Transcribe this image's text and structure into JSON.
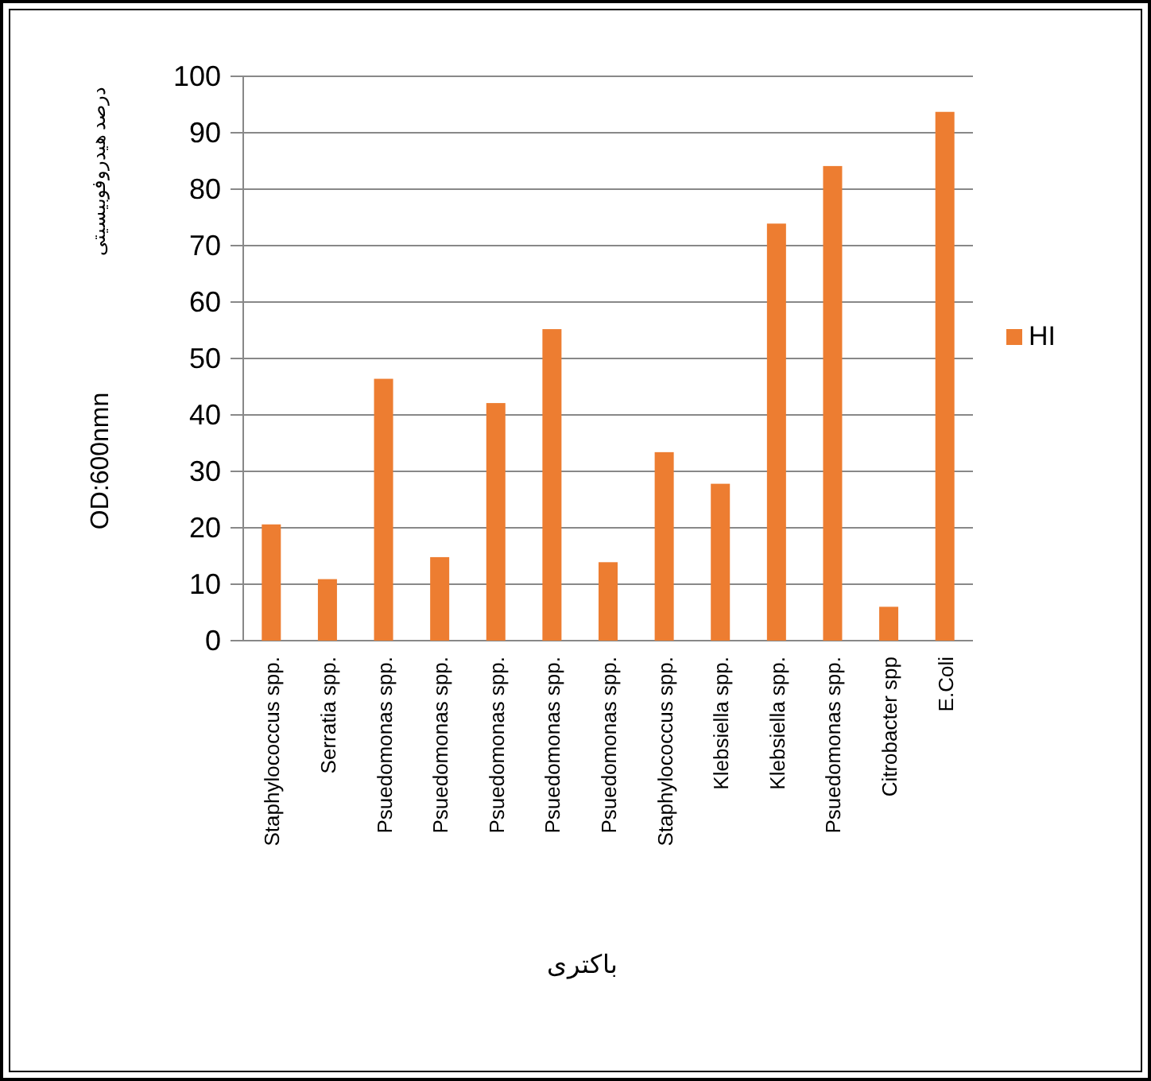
{
  "chart_data": {
    "type": "bar",
    "categories": [
      "Staphylococcus spp.",
      "Serratia spp.",
      "Psuedomonas spp.",
      "Psuedomonas spp.",
      "Psuedomonas spp.",
      "Psuedomonas spp.",
      "Psuedomonas spp.",
      "Staphylococcus spp.",
      "Klebsiella spp.",
      "Klebsiella spp.",
      "Psuedomonas spp.",
      "Citrobacter spp",
      "E.Coli"
    ],
    "series": [
      {
        "name": "HI",
        "color": "#ed7d31",
        "values": [
          20.6,
          10.9,
          46.4,
          14.8,
          42.1,
          55.2,
          13.9,
          33.4,
          27.8,
          73.9,
          84.1,
          6.0,
          93.7
        ]
      }
    ],
    "xlabel": "باکتری",
    "ylabel": "OD:600nmn",
    "annotations": [
      "درصد هیدروفوبیسیتی"
    ],
    "ylim": [
      0,
      100
    ],
    "yticks": [
      0,
      10,
      20,
      30,
      40,
      50,
      60,
      70,
      80,
      90,
      100
    ],
    "grid": "y",
    "legend": "right"
  }
}
